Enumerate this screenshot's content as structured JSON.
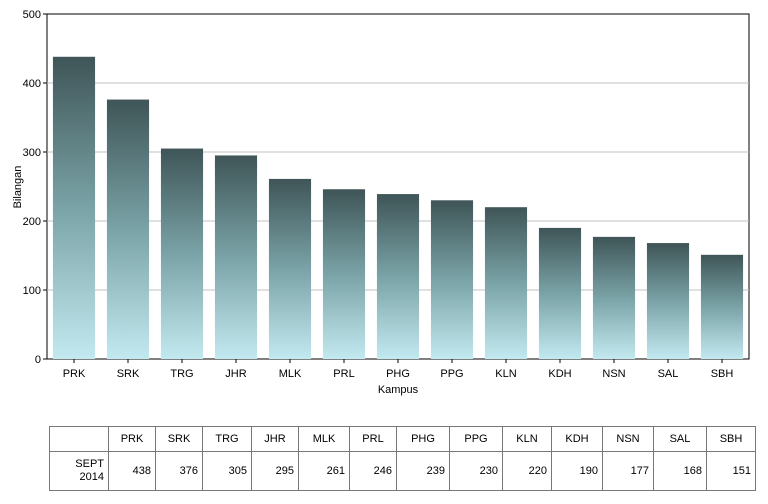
{
  "chart_data": {
    "type": "bar",
    "categories": [
      "PRK",
      "SRK",
      "TRG",
      "JHR",
      "MLK",
      "PRL",
      "PHG",
      "PPG",
      "KLN",
      "KDH",
      "NSN",
      "SAL",
      "SBH"
    ],
    "series": [
      {
        "name": "SEPT 2014",
        "values": [
          438,
          376,
          305,
          295,
          261,
          246,
          239,
          230,
          220,
          190,
          177,
          168,
          151
        ]
      }
    ],
    "xlabel": "Kampus",
    "ylabel": "Bilangan",
    "ylim": [
      0,
      500
    ],
    "yticks": [
      0,
      100,
      200,
      300,
      400,
      500
    ],
    "grid": true,
    "legend": "none",
    "colors": {
      "bar_top": "#3f5557",
      "bar_mid": "#7aa3a7",
      "bar_bottom": "#c2e9ef",
      "grid": "#c0c0c0"
    }
  },
  "table": {
    "row_label_line1": "SEPT",
    "row_label_line2": "2014"
  }
}
